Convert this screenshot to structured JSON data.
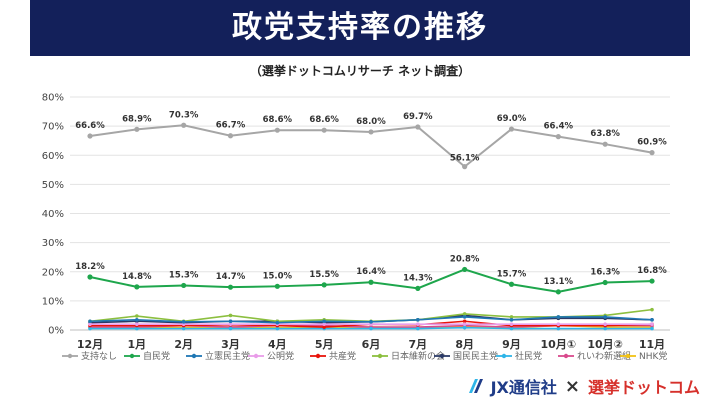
{
  "header": {
    "title": "政党支持率の推移",
    "subtitle": "（選挙ドットコムリサーチ ネット調査）"
  },
  "footer": {
    "jx_label": "JX通信社",
    "cross": "×",
    "senkyo_label": "選挙ドットコム"
  },
  "chart_data": {
    "type": "line",
    "title": "",
    "xlabel": "",
    "ylabel": "",
    "ylim": [
      0,
      80
    ],
    "yticks": [
      "0%",
      "10%",
      "20%",
      "30%",
      "40%",
      "50%",
      "60%",
      "70%",
      "80%"
    ],
    "categories": [
      "12月",
      "1月",
      "2月",
      "3月",
      "4月",
      "5月",
      "6月",
      "7月",
      "8月",
      "9月",
      "10月①",
      "10月②",
      "11月"
    ],
    "grid": true,
    "legend_position": "bottom",
    "series": [
      {
        "name": "支持なし",
        "color": "#a6a6a6",
        "values": [
          66.6,
          68.9,
          70.3,
          66.7,
          68.6,
          68.6,
          68.0,
          69.7,
          56.1,
          69.0,
          66.4,
          63.8,
          60.9
        ],
        "labels": [
          "66.6%",
          "68.9%",
          "70.3%",
          "66.7%",
          "68.6%",
          "68.6%",
          "68.0%",
          "69.7%",
          "56.1%",
          "69.0%",
          "66.4%",
          "63.8%",
          "60.9%"
        ]
      },
      {
        "name": "自民党",
        "color": "#1ea64c",
        "values": [
          18.2,
          14.8,
          15.3,
          14.7,
          15.0,
          15.5,
          16.4,
          14.3,
          20.8,
          15.7,
          13.1,
          16.3,
          16.8
        ],
        "labels": [
          "18.2%",
          "14.8%",
          "15.3%",
          "14.7%",
          "15.0%",
          "15.5%",
          "16.4%",
          "14.3%",
          "20.8%",
          "15.7%",
          "13.1%",
          "16.3%",
          "16.8%"
        ]
      },
      {
        "name": "立憲民主党",
        "color": "#1f77b4",
        "values": [
          3.0,
          3.5,
          2.8,
          3.0,
          2.5,
          3.0,
          2.8,
          3.5,
          4.5,
          3.5,
          4.5,
          4.5,
          3.5
        ]
      },
      {
        "name": "公明党",
        "color": "#e99ce9",
        "values": [
          2.0,
          2.0,
          2.0,
          2.0,
          2.0,
          2.0,
          2.0,
          2.0,
          2.0,
          2.0,
          2.0,
          2.0,
          2.0
        ]
      },
      {
        "name": "共産党",
        "color": "#e8150b",
        "values": [
          1.5,
          1.5,
          1.5,
          1.8,
          1.5,
          1.0,
          2.0,
          1.8,
          3.0,
          1.5,
          1.5,
          1.5,
          2.0
        ]
      },
      {
        "name": "日本維新の会",
        "color": "#8cbf3f",
        "values": [
          3.0,
          4.8,
          3.0,
          5.0,
          3.0,
          3.5,
          3.0,
          3.5,
          5.5,
          4.5,
          4.5,
          5.0,
          7.0
        ]
      },
      {
        "name": "国民民主党",
        "color": "#2b3a67",
        "values": [
          2.5,
          3.0,
          2.5,
          3.0,
          3.0,
          2.5,
          2.8,
          3.5,
          5.0,
          3.5,
          4.0,
          4.0,
          3.5
        ]
      },
      {
        "name": "社民党",
        "color": "#2fb5e8",
        "values": [
          0.5,
          0.5,
          0.5,
          0.5,
          0.5,
          0.5,
          0.5,
          0.5,
          0.8,
          0.5,
          0.5,
          0.5,
          0.5
        ]
      },
      {
        "name": "れいわ新選組",
        "color": "#d94a8c",
        "values": [
          1.0,
          1.0,
          1.5,
          1.0,
          1.5,
          1.5,
          1.0,
          1.0,
          1.5,
          1.0,
          1.5,
          1.5,
          1.5
        ]
      },
      {
        "name": "NHK党",
        "color": "#f2c215",
        "values": [
          0.8,
          1.0,
          0.8,
          1.0,
          0.8,
          0.8,
          1.0,
          0.8,
          1.0,
          0.8,
          1.5,
          1.0,
          1.0
        ]
      }
    ]
  }
}
